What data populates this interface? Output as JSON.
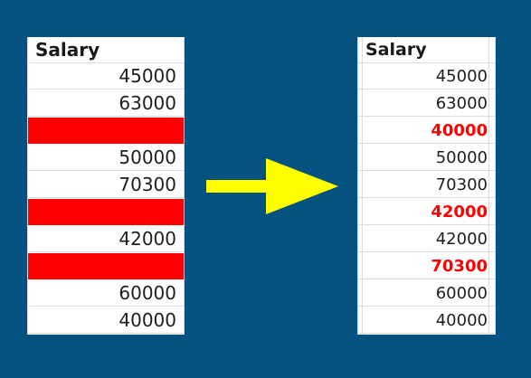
{
  "before": {
    "header": "Salary",
    "rows": [
      "45000",
      "63000",
      "",
      "50000",
      "70300",
      "",
      "42000",
      "",
      "60000",
      "40000"
    ],
    "blank_rows": [
      2,
      5,
      7
    ]
  },
  "after": {
    "header": "Salary",
    "rows": [
      "45000",
      "63000",
      "40000",
      "50000",
      "70300",
      "42000",
      "42000",
      "70300",
      "60000",
      "40000"
    ],
    "filled_rows": [
      2,
      5,
      7
    ]
  },
  "colors": {
    "background": "#03527f",
    "blank_fill": "#ff0000",
    "filled_text": "#ff0000",
    "arrow": "#ffff00"
  },
  "icons": {
    "transform_arrow": "arrow-right-icon"
  }
}
